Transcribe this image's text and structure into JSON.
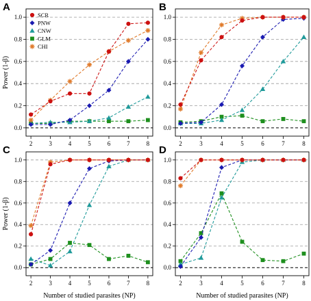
{
  "chart_data": [
    {
      "panel": "A",
      "type": "line",
      "x": [
        2,
        3,
        4,
        5,
        6,
        7,
        8
      ],
      "xlabel": "",
      "ylabel": "Power (1-β)",
      "ylim": [
        0,
        1
      ],
      "legend": "top-left",
      "grid": "horizontal dashed",
      "series": [
        {
          "name": "SCR",
          "values": [
            0.12,
            0.24,
            0.31,
            0.31,
            0.69,
            0.94,
            0.95
          ]
        },
        {
          "name": "PNW",
          "values": [
            0.03,
            0.03,
            0.07,
            0.2,
            0.34,
            0.6,
            0.8
          ]
        },
        {
          "name": "CNW",
          "values": [
            0.04,
            0.05,
            0.05,
            0.06,
            0.09,
            0.19,
            0.28
          ]
        },
        {
          "name": "GLM",
          "values": [
            0.04,
            0.04,
            0.06,
            0.06,
            0.06,
            0.06,
            0.07
          ]
        },
        {
          "name": "CHI",
          "values": [
            0.07,
            0.25,
            0.42,
            0.57,
            0.69,
            0.79,
            0.88
          ]
        }
      ]
    },
    {
      "panel": "B",
      "type": "line",
      "x": [
        2,
        3,
        4,
        5,
        6,
        7,
        8
      ],
      "xlabel": "",
      "ylabel": "",
      "ylim": [
        0,
        1
      ],
      "grid": "horizontal dashed",
      "series": [
        {
          "name": "SCR",
          "values": [
            0.21,
            0.61,
            0.82,
            0.97,
            1.0,
            1.0,
            1.0
          ]
        },
        {
          "name": "PNW",
          "values": [
            0.04,
            0.05,
            0.21,
            0.56,
            0.82,
            0.98,
            0.99
          ]
        },
        {
          "name": "CNW",
          "values": [
            0.04,
            0.04,
            0.07,
            0.16,
            0.35,
            0.6,
            0.82
          ]
        },
        {
          "name": "GLM",
          "values": [
            0.05,
            0.06,
            0.1,
            0.11,
            0.06,
            0.08,
            0.06
          ]
        },
        {
          "name": "CHI",
          "values": [
            0.17,
            0.68,
            0.93,
            0.99,
            1.0,
            1.0,
            1.0
          ]
        }
      ]
    },
    {
      "panel": "C",
      "type": "line",
      "x": [
        2,
        3,
        4,
        5,
        6,
        7,
        8
      ],
      "xlabel": "Number of studied parasites (NP)",
      "ylabel": "Power (1-β)",
      "ylim": [
        0,
        1
      ],
      "grid": "horizontal dashed",
      "series": [
        {
          "name": "SCR",
          "values": [
            0.31,
            0.96,
            1.0,
            1.0,
            1.0,
            1.0,
            1.0
          ]
        },
        {
          "name": "PNW",
          "values": [
            0.03,
            0.16,
            0.6,
            0.92,
            0.99,
            1.0,
            1.0
          ]
        },
        {
          "name": "CNW",
          "values": [
            0.08,
            0.02,
            0.15,
            0.58,
            0.94,
            1.0,
            1.0
          ]
        },
        {
          "name": "GLM",
          "values": [
            0.03,
            0.08,
            0.23,
            0.21,
            0.08,
            0.11,
            0.05
          ]
        },
        {
          "name": "CHI",
          "values": [
            0.39,
            0.98,
            1.0,
            1.0,
            1.0,
            1.0,
            1.0
          ]
        }
      ]
    },
    {
      "panel": "D",
      "type": "line",
      "x": [
        2,
        3,
        4,
        5,
        6,
        7,
        8
      ],
      "xlabel": "Number of studied parasites (NP)",
      "ylabel": "",
      "ylim": [
        0,
        1
      ],
      "grid": "horizontal dashed",
      "series": [
        {
          "name": "SCR",
          "values": [
            0.83,
            1.0,
            1.0,
            1.0,
            1.0,
            1.0,
            1.0
          ]
        },
        {
          "name": "PNW",
          "values": [
            0.01,
            0.28,
            0.93,
            1.0,
            1.0,
            1.0,
            1.0
          ]
        },
        {
          "name": "CNW",
          "values": [
            0.03,
            0.09,
            0.65,
            0.98,
            1.0,
            1.0,
            1.0
          ]
        },
        {
          "name": "GLM",
          "values": [
            0.06,
            0.32,
            0.69,
            0.24,
            0.07,
            0.06,
            0.13
          ]
        },
        {
          "name": "CHI",
          "values": [
            0.76,
            1.0,
            1.0,
            1.0,
            1.0,
            1.0,
            1.0
          ]
        }
      ]
    }
  ],
  "styles": {
    "SCR": {
      "color": "#cc1111",
      "marker": "circle"
    },
    "PNW": {
      "color": "#1a1ab0",
      "marker": "diamond"
    },
    "CNW": {
      "color": "#1f9a9a",
      "marker": "triangle"
    },
    "GLM": {
      "color": "#1e8f1e",
      "marker": "square"
    },
    "CHI": {
      "color": "#e07a2a",
      "marker": "star"
    }
  },
  "y_ticks": [
    0.0,
    0.2,
    0.4,
    0.6,
    0.8,
    1.0
  ],
  "y_tick_labels": [
    "0.0",
    "0.2",
    "0.4",
    "0.6",
    "0.8",
    "1.0"
  ],
  "x_ticks": [
    2,
    3,
    4,
    5,
    6,
    7,
    8
  ],
  "x_tick_labels": [
    "2",
    "3",
    "4",
    "5",
    "6",
    "7",
    "8"
  ]
}
